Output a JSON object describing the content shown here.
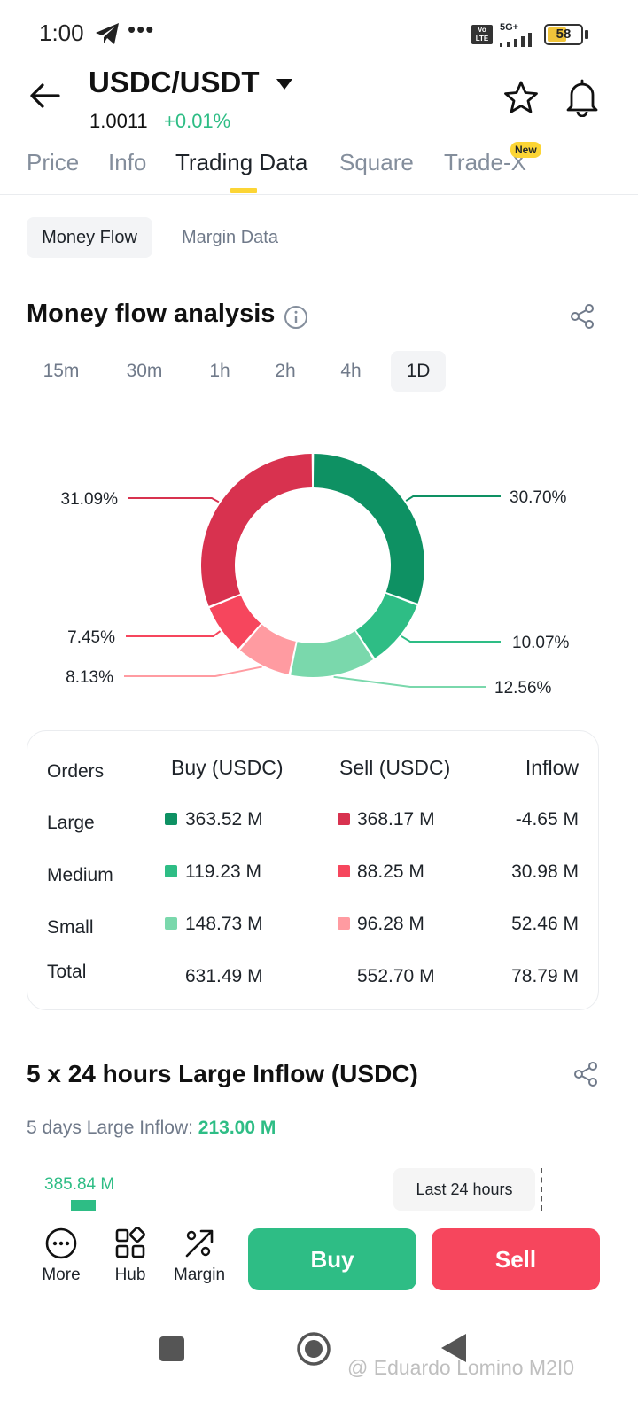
{
  "status_bar": {
    "time": "1:00",
    "dots": "•••",
    "volte_label": "Vo LTE",
    "network": "5G+",
    "battery": "58"
  },
  "header": {
    "pair": "USDC/USDT",
    "price": "1.0011",
    "change": "+0.01%"
  },
  "tabs": [
    {
      "label": "Price"
    },
    {
      "label": "Info"
    },
    {
      "label": "Trading Data"
    },
    {
      "label": "Square"
    },
    {
      "label": "Trade-X",
      "badge": "New"
    }
  ],
  "segments": {
    "active": "Money Flow",
    "inactive": "Margin Data"
  },
  "money_flow": {
    "title": "Money flow analysis",
    "intervals": [
      "15m",
      "30m",
      "1h",
      "2h",
      "4h",
      "1D"
    ],
    "selected_interval": "1D",
    "colors": {
      "buy_large": "#0e9163",
      "buy_medium": "#2ebd85",
      "buy_small": "#7ad8ac",
      "sell_large": "#d8324f",
      "sell_medium": "#f6465d",
      "sell_small": "#ff9ba1"
    },
    "chart_data": {
      "type": "pie",
      "categories": [
        "Buy Large",
        "Buy Medium",
        "Buy Small",
        "Sell Small",
        "Sell Medium",
        "Sell Large"
      ],
      "values": [
        30.7,
        10.07,
        12.56,
        8.13,
        7.45,
        31.09
      ],
      "labels": [
        "30.70%",
        "10.07%",
        "12.56%",
        "8.13%",
        "7.45%",
        "31.09%"
      ]
    }
  },
  "orders_table": {
    "headers": [
      "Orders",
      "Buy (USDC)",
      "Sell (USDC)",
      "Inflow"
    ],
    "rows": [
      {
        "label": "Large",
        "buy": "363.52 M",
        "sell": "368.17 M",
        "inflow": "-4.65 M"
      },
      {
        "label": "Medium",
        "buy": "119.23 M",
        "sell": "88.25 M",
        "inflow": "30.98 M"
      },
      {
        "label": "Small",
        "buy": "148.73 M",
        "sell": "96.28 M",
        "inflow": "52.46 M"
      },
      {
        "label": "Total",
        "buy": "631.49 M",
        "sell": "552.70 M",
        "inflow": "78.79 M"
      }
    ]
  },
  "large_inflow": {
    "title": "5 x 24 hours Large Inflow (USDC)",
    "subtitle_label": "5 days Large Inflow:",
    "subtitle_value": "213.00 M",
    "top_value": "385.84 M",
    "tooltip": "Last 24 hours"
  },
  "action_bar": {
    "more": "More",
    "hub": "Hub",
    "margin": "Margin",
    "buy": "Buy",
    "sell": "Sell"
  },
  "watermark": "@ Eduardo Lomino M2I0"
}
